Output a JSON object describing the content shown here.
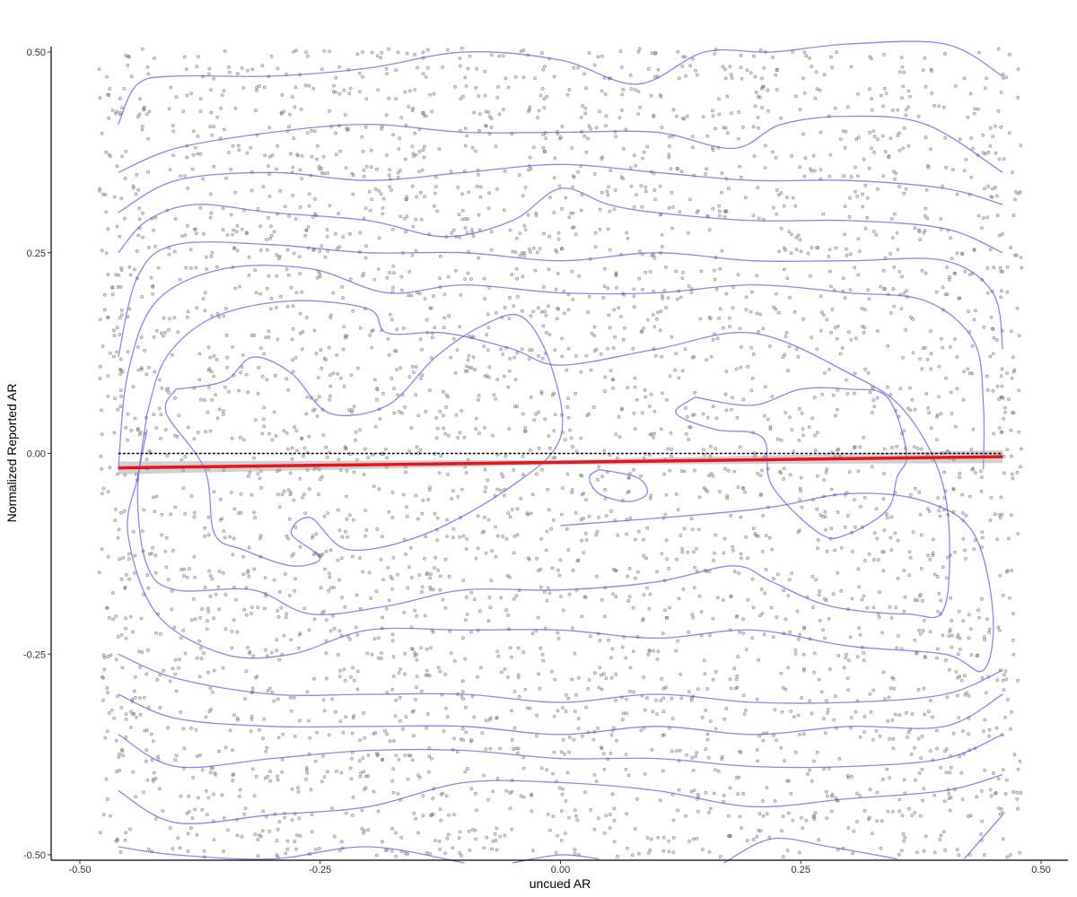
{
  "chart_data": {
    "type": "scatter",
    "title": "",
    "xlabel": "uncued AR",
    "ylabel": "Normalized Reported AR",
    "xlim": [
      -0.52,
      0.53
    ],
    "ylim": [
      -0.505,
      0.51
    ],
    "x_ticks": [
      -0.5,
      -0.25,
      0.0,
      0.25,
      0.5
    ],
    "x_tick_labels": [
      "-0.50",
      "-0.25",
      "0.00",
      "0.25",
      "0.50"
    ],
    "y_ticks": [
      -0.5,
      -0.25,
      0.0,
      0.25,
      0.5
    ],
    "y_tick_labels": [
      "-0.50",
      "-0.25",
      "0.00",
      "0.25",
      "0.50"
    ],
    "grid": false,
    "legend": "none",
    "scatter": {
      "description_of_distribution": "approximately uniform jittered points",
      "x_range": [
        -0.48,
        0.48
      ],
      "y_range": [
        -0.5,
        0.5
      ],
      "approx_count": 4200,
      "y_levels_step": 0.025,
      "color": "#555555"
    },
    "reference_line": {
      "y": 0.0,
      "x_range": [
        -0.46,
        0.46
      ],
      "color": "#000000",
      "style": "dotted"
    },
    "fit_line": {
      "x": [
        -0.46,
        0.46
      ],
      "y": [
        -0.018,
        -0.004
      ],
      "ci_halfwidth_ends": 0.008,
      "ci_halfwidth_center": 0.003,
      "color": "#e8141b"
    },
    "density_contours": [
      {
        "name": "c1",
        "points": [
          [
            -0.46,
            0.41
          ],
          [
            -0.44,
            0.46
          ],
          [
            -0.4,
            0.47
          ],
          [
            -0.3,
            0.47
          ],
          [
            -0.2,
            0.48
          ],
          [
            -0.1,
            0.5
          ],
          [
            0.0,
            0.49
          ],
          [
            0.08,
            0.46
          ],
          [
            0.15,
            0.5
          ],
          [
            0.22,
            0.5
          ],
          [
            0.3,
            0.51
          ],
          [
            0.4,
            0.51
          ],
          [
            0.46,
            0.47
          ]
        ]
      },
      {
        "name": "c2",
        "points": [
          [
            -0.46,
            0.35
          ],
          [
            -0.4,
            0.38
          ],
          [
            -0.3,
            0.4
          ],
          [
            -0.2,
            0.41
          ],
          [
            -0.1,
            0.4
          ],
          [
            0.0,
            0.4
          ],
          [
            0.1,
            0.4
          ],
          [
            0.18,
            0.38
          ],
          [
            0.23,
            0.41
          ],
          [
            0.3,
            0.42
          ],
          [
            0.38,
            0.41
          ],
          [
            0.46,
            0.35
          ]
        ]
      },
      {
        "name": "c3",
        "points": [
          [
            -0.46,
            0.3
          ],
          [
            -0.4,
            0.34
          ],
          [
            -0.3,
            0.35
          ],
          [
            -0.2,
            0.34
          ],
          [
            -0.1,
            0.35
          ],
          [
            0.0,
            0.36
          ],
          [
            0.1,
            0.35
          ],
          [
            0.2,
            0.34
          ],
          [
            0.3,
            0.34
          ],
          [
            0.4,
            0.33
          ],
          [
            0.46,
            0.31
          ]
        ]
      },
      {
        "name": "c4",
        "points": [
          [
            -0.46,
            0.25
          ],
          [
            -0.43,
            0.29
          ],
          [
            -0.38,
            0.31
          ],
          [
            -0.3,
            0.3
          ],
          [
            -0.2,
            0.29
          ],
          [
            -0.12,
            0.27
          ],
          [
            -0.05,
            0.29
          ],
          [
            0.0,
            0.33
          ],
          [
            0.05,
            0.31
          ],
          [
            0.1,
            0.3
          ],
          [
            0.2,
            0.29
          ],
          [
            0.3,
            0.29
          ],
          [
            0.4,
            0.28
          ],
          [
            0.46,
            0.25
          ]
        ]
      },
      {
        "name": "c5",
        "points": [
          [
            -0.46,
            0.12
          ],
          [
            -0.44,
            0.22
          ],
          [
            -0.4,
            0.26
          ],
          [
            -0.3,
            0.26
          ],
          [
            -0.2,
            0.25
          ],
          [
            -0.1,
            0.25
          ],
          [
            0.0,
            0.24
          ],
          [
            0.1,
            0.25
          ],
          [
            0.2,
            0.24
          ],
          [
            0.3,
            0.24
          ],
          [
            0.4,
            0.24
          ],
          [
            0.45,
            0.2
          ],
          [
            0.46,
            0.13
          ]
        ]
      },
      {
        "name": "c6",
        "points": [
          [
            -0.46,
            -0.02
          ],
          [
            -0.45,
            0.1
          ],
          [
            -0.42,
            0.19
          ],
          [
            -0.35,
            0.23
          ],
          [
            -0.26,
            0.23
          ],
          [
            -0.18,
            0.2
          ],
          [
            -0.1,
            0.21
          ],
          [
            0.0,
            0.2
          ],
          [
            0.1,
            0.2
          ],
          [
            0.2,
            0.21
          ],
          [
            0.3,
            0.2
          ],
          [
            0.38,
            0.19
          ],
          [
            0.43,
            0.14
          ],
          [
            0.44,
            0.06
          ],
          [
            0.44,
            -0.02
          ]
        ]
      },
      {
        "name": "c7",
        "points": [
          [
            0.0,
            -0.09
          ],
          [
            0.2,
            -0.07
          ],
          [
            0.3,
            -0.05
          ],
          [
            0.38,
            -0.06
          ],
          [
            0.43,
            -0.1
          ],
          [
            0.45,
            -0.2
          ],
          [
            0.44,
            -0.27
          ],
          [
            0.4,
            -0.25
          ],
          [
            0.3,
            -0.24
          ],
          [
            0.2,
            -0.22
          ],
          [
            0.1,
            -0.23
          ],
          [
            0.0,
            -0.22
          ],
          [
            -0.1,
            -0.22
          ],
          [
            -0.2,
            -0.22
          ],
          [
            -0.28,
            -0.25
          ],
          [
            -0.35,
            -0.25
          ],
          [
            -0.42,
            -0.2
          ],
          [
            -0.45,
            -0.1
          ],
          [
            -0.44,
            -0.03
          ],
          [
            -0.43,
            0.03
          ]
        ]
      },
      {
        "name": "c8",
        "points": [
          [
            -0.43,
            0.05
          ],
          [
            -0.44,
            -0.05
          ],
          [
            -0.43,
            -0.14
          ],
          [
            -0.4,
            -0.17
          ],
          [
            -0.32,
            -0.17
          ],
          [
            -0.26,
            -0.2
          ],
          [
            -0.18,
            -0.19
          ],
          [
            -0.1,
            -0.17
          ],
          [
            0.0,
            -0.17
          ],
          [
            0.1,
            -0.16
          ],
          [
            0.18,
            -0.14
          ],
          [
            0.22,
            -0.16
          ],
          [
            0.28,
            -0.19
          ],
          [
            0.36,
            -0.2
          ],
          [
            0.4,
            -0.19
          ],
          [
            0.4,
            -0.05
          ],
          [
            0.36,
            0.05
          ],
          [
            0.3,
            0.1
          ],
          [
            0.2,
            0.15
          ],
          [
            0.1,
            0.13
          ],
          [
            0.0,
            0.11
          ],
          [
            -0.05,
            0.13
          ],
          [
            -0.12,
            0.15
          ],
          [
            -0.18,
            0.15
          ],
          [
            -0.2,
            0.18
          ],
          [
            -0.28,
            0.19
          ],
          [
            -0.36,
            0.17
          ],
          [
            -0.41,
            0.12
          ],
          [
            -0.43,
            0.05
          ]
        ]
      },
      {
        "name": "c9",
        "points": [
          [
            -0.4,
            0.08
          ],
          [
            -0.35,
            0.09
          ],
          [
            -0.32,
            0.12
          ],
          [
            -0.28,
            0.1
          ],
          [
            -0.24,
            0.05
          ],
          [
            -0.18,
            0.06
          ],
          [
            -0.13,
            0.12
          ],
          [
            -0.08,
            0.16
          ],
          [
            -0.04,
            0.17
          ],
          [
            -0.01,
            0.11
          ],
          [
            0.0,
            0.02
          ],
          [
            -0.05,
            -0.04
          ],
          [
            -0.14,
            -0.1
          ],
          [
            -0.22,
            -0.12
          ],
          [
            -0.26,
            -0.08
          ],
          [
            -0.28,
            -0.1
          ],
          [
            -0.25,
            -0.13
          ],
          [
            -0.28,
            -0.14
          ],
          [
            -0.33,
            -0.12
          ],
          [
            -0.36,
            -0.1
          ],
          [
            -0.37,
            -0.02
          ],
          [
            -0.41,
            0.05
          ],
          [
            -0.4,
            0.08
          ]
        ]
      },
      {
        "name": "c10",
        "points": [
          [
            0.14,
            0.07
          ],
          [
            0.2,
            0.06
          ],
          [
            0.25,
            0.08
          ],
          [
            0.3,
            0.08
          ],
          [
            0.34,
            0.07
          ],
          [
            0.36,
            0.0
          ],
          [
            0.35,
            -0.03
          ],
          [
            0.34,
            -0.07
          ],
          [
            0.3,
            -0.1
          ],
          [
            0.27,
            -0.1
          ],
          [
            0.22,
            -0.04
          ],
          [
            0.21,
            0.02
          ],
          [
            0.16,
            0.03
          ],
          [
            0.12,
            0.05
          ],
          [
            0.14,
            0.07
          ]
        ]
      },
      {
        "name": "c11",
        "points": [
          [
            0.04,
            -0.02
          ],
          [
            0.08,
            -0.03
          ],
          [
            0.09,
            -0.05
          ],
          [
            0.07,
            -0.06
          ],
          [
            0.04,
            -0.05
          ],
          [
            0.03,
            -0.03
          ],
          [
            0.04,
            -0.02
          ]
        ]
      },
      {
        "name": "c12",
        "points": [
          [
            -0.46,
            -0.25
          ],
          [
            -0.4,
            -0.28
          ],
          [
            -0.3,
            -0.3
          ],
          [
            -0.2,
            -0.3
          ],
          [
            -0.1,
            -0.3
          ],
          [
            0.0,
            -0.31
          ],
          [
            0.1,
            -0.3
          ],
          [
            0.2,
            -0.31
          ],
          [
            0.3,
            -0.31
          ],
          [
            0.4,
            -0.3
          ],
          [
            0.46,
            -0.27
          ]
        ]
      },
      {
        "name": "c13",
        "points": [
          [
            -0.46,
            -0.3
          ],
          [
            -0.4,
            -0.33
          ],
          [
            -0.3,
            -0.34
          ],
          [
            -0.2,
            -0.34
          ],
          [
            -0.1,
            -0.34
          ],
          [
            0.0,
            -0.35
          ],
          [
            0.1,
            -0.34
          ],
          [
            0.2,
            -0.35
          ],
          [
            0.3,
            -0.34
          ],
          [
            0.4,
            -0.34
          ],
          [
            0.46,
            -0.3
          ]
        ]
      },
      {
        "name": "c14",
        "points": [
          [
            -0.46,
            -0.35
          ],
          [
            -0.4,
            -0.39
          ],
          [
            -0.3,
            -0.38
          ],
          [
            -0.2,
            -0.37
          ],
          [
            -0.1,
            -0.37
          ],
          [
            0.0,
            -0.38
          ],
          [
            0.1,
            -0.38
          ],
          [
            0.2,
            -0.39
          ],
          [
            0.3,
            -0.39
          ],
          [
            0.4,
            -0.38
          ],
          [
            0.46,
            -0.35
          ]
        ]
      },
      {
        "name": "c15",
        "points": [
          [
            -0.46,
            -0.42
          ],
          [
            -0.4,
            -0.46
          ],
          [
            -0.3,
            -0.45
          ],
          [
            -0.2,
            -0.44
          ],
          [
            -0.1,
            -0.41
          ],
          [
            0.0,
            -0.41
          ],
          [
            0.1,
            -0.42
          ],
          [
            0.2,
            -0.44
          ],
          [
            0.3,
            -0.43
          ],
          [
            0.4,
            -0.42
          ],
          [
            0.46,
            -0.4
          ]
        ]
      },
      {
        "name": "c16",
        "points": [
          [
            -0.46,
            -0.49
          ],
          [
            -0.4,
            -0.5
          ],
          [
            -0.3,
            -0.505
          ],
          [
            -0.2,
            -0.49
          ],
          [
            -0.1,
            -0.51
          ]
        ]
      },
      {
        "name": "c17",
        "points": [
          [
            -0.05,
            -0.51
          ],
          [
            0.0,
            -0.5
          ],
          [
            0.04,
            -0.505
          ]
        ]
      },
      {
        "name": "c18",
        "points": [
          [
            0.17,
            -0.51
          ],
          [
            0.22,
            -0.48
          ],
          [
            0.28,
            -0.49
          ],
          [
            0.35,
            -0.505
          ]
        ]
      },
      {
        "name": "c19",
        "points": [
          [
            0.42,
            -0.505
          ],
          [
            0.46,
            -0.45
          ]
        ]
      }
    ]
  }
}
